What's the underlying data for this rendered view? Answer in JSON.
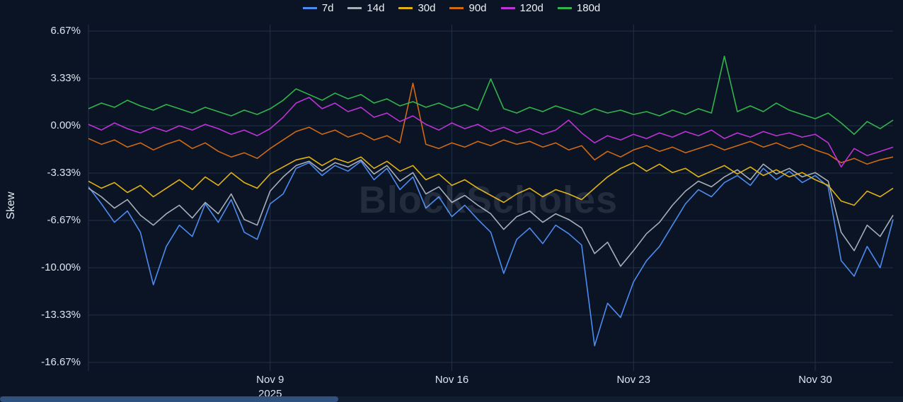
{
  "watermark": "BlockScholes",
  "colors": {
    "background": "#0a1424",
    "grid": "#233147",
    "text": "#dce4ef",
    "scrollbar_track": "#101d33",
    "scrollbar_thumb": "#31517f"
  },
  "y_axis": {
    "title": "Skew",
    "max": 7.12,
    "min": -17.27,
    "ticks": [
      {
        "label": "6.67%",
        "value": 6.67
      },
      {
        "label": "3.33%",
        "value": 3.33
      },
      {
        "label": "0.00%",
        "value": 0
      },
      {
        "label": "-3.33%",
        "value": -3.33
      },
      {
        "label": "-6.67%",
        "value": -6.67
      },
      {
        "label": "-10.00%",
        "value": -10.0
      },
      {
        "label": "-13.33%",
        "value": -13.33
      },
      {
        "label": "-16.67%",
        "value": -16.67
      }
    ]
  },
  "x_axis": {
    "min_day": 0,
    "max_day": 31,
    "unit": "days from chart start (early Nov 2025)",
    "ticks": [
      {
        "label": "Nov 9",
        "sub": "2025",
        "day": 7
      },
      {
        "label": "Nov 16",
        "sub": "",
        "day": 14
      },
      {
        "label": "Nov 23",
        "sub": "",
        "day": 21
      },
      {
        "label": "Nov 30",
        "sub": "",
        "day": 28
      }
    ]
  },
  "chart_data": {
    "type": "line",
    "title": "",
    "ylabel": "Skew",
    "ylim": [
      -17.27,
      7.12
    ],
    "grid": true,
    "legend_position": "top-center",
    "x_unit": "days (0 = chart start ~Nov 2 2025; ticks at Nov 9/16/23/30 2025)",
    "x": [
      0,
      0.5,
      1,
      1.5,
      2,
      2.5,
      3,
      3.5,
      4,
      4.5,
      5,
      5.5,
      6,
      6.5,
      7,
      7.5,
      8,
      8.5,
      9,
      9.5,
      10,
      10.5,
      11,
      11.5,
      12,
      12.5,
      13,
      13.5,
      14,
      14.5,
      15,
      15.5,
      16,
      16.5,
      17,
      17.5,
      18,
      18.5,
      19,
      19.5,
      20,
      20.5,
      21,
      21.5,
      22,
      22.5,
      23,
      23.5,
      24,
      24.5,
      25,
      25.5,
      26,
      26.5,
      27,
      27.5,
      28,
      28.5,
      29,
      29.5,
      30,
      30.5,
      31
    ],
    "series": [
      {
        "name": "7d",
        "color": "#4d8bf0",
        "values": [
          -4.3,
          -5.5,
          -6.8,
          -6.0,
          -7.5,
          -11.2,
          -8.5,
          -7.0,
          -7.8,
          -5.5,
          -6.8,
          -5.2,
          -7.5,
          -8.0,
          -5.5,
          -4.8,
          -3.0,
          -2.6,
          -3.5,
          -2.8,
          -3.2,
          -2.5,
          -3.8,
          -3.0,
          -4.5,
          -3.6,
          -5.8,
          -5.0,
          -6.4,
          -5.6,
          -6.6,
          -7.5,
          -10.4,
          -8.0,
          -7.2,
          -8.3,
          -7.0,
          -7.6,
          -8.4,
          -15.5,
          -12.5,
          -13.5,
          -11.0,
          -9.5,
          -8.5,
          -7.0,
          -5.5,
          -4.5,
          -5.0,
          -4.0,
          -3.5,
          -4.2,
          -3.0,
          -3.8,
          -3.2,
          -4.0,
          -3.5,
          -4.3,
          -9.5,
          -10.6,
          -8.5,
          -10.0,
          -6.6
        ]
      },
      {
        "name": "14d",
        "color": "#a7afb9",
        "values": [
          -4.4,
          -5.0,
          -5.8,
          -5.2,
          -6.3,
          -7.0,
          -6.2,
          -5.6,
          -6.5,
          -5.4,
          -6.2,
          -4.8,
          -6.6,
          -7.0,
          -4.6,
          -3.6,
          -2.8,
          -2.5,
          -3.2,
          -2.6,
          -2.9,
          -2.4,
          -3.4,
          -2.8,
          -3.9,
          -3.3,
          -4.8,
          -4.3,
          -5.4,
          -4.9,
          -5.6,
          -6.2,
          -7.3,
          -6.4,
          -6.0,
          -6.8,
          -6.2,
          -6.6,
          -7.2,
          -9.0,
          -8.2,
          -9.9,
          -8.8,
          -7.6,
          -6.8,
          -5.6,
          -4.6,
          -3.9,
          -4.3,
          -3.6,
          -3.1,
          -3.8,
          -2.7,
          -3.4,
          -3.0,
          -3.6,
          -3.3,
          -3.9,
          -7.5,
          -8.8,
          -7.0,
          -7.8,
          -6.3
        ]
      },
      {
        "name": "30d",
        "color": "#e2b215",
        "values": [
          -3.9,
          -4.4,
          -4.0,
          -4.7,
          -4.2,
          -5.0,
          -4.4,
          -3.8,
          -4.5,
          -3.6,
          -4.2,
          -3.3,
          -4.0,
          -4.4,
          -3.4,
          -2.9,
          -2.4,
          -2.2,
          -2.8,
          -2.3,
          -2.6,
          -2.2,
          -3.0,
          -2.5,
          -3.2,
          -2.8,
          -3.8,
          -3.4,
          -4.2,
          -3.8,
          -4.4,
          -4.9,
          -5.4,
          -4.8,
          -4.4,
          -5.0,
          -4.5,
          -4.8,
          -5.2,
          -4.4,
          -3.6,
          -3.0,
          -2.6,
          -3.2,
          -2.7,
          -3.3,
          -3.0,
          -3.6,
          -3.2,
          -2.8,
          -3.4,
          -2.9,
          -3.5,
          -3.1,
          -3.6,
          -3.3,
          -3.8,
          -4.2,
          -5.3,
          -5.6,
          -4.6,
          -5.0,
          -4.4
        ]
      },
      {
        "name": "90d",
        "color": "#d06a14",
        "values": [
          -0.9,
          -1.3,
          -1.0,
          -1.5,
          -1.2,
          -1.7,
          -1.3,
          -1.0,
          -1.6,
          -1.2,
          -1.8,
          -2.2,
          -1.9,
          -2.3,
          -1.6,
          -1.0,
          -0.4,
          -0.1,
          -0.6,
          -0.3,
          -0.8,
          -0.5,
          -1.0,
          -0.7,
          -1.2,
          3.0,
          -1.3,
          -1.6,
          -1.2,
          -1.5,
          -1.1,
          -1.4,
          -1.0,
          -1.3,
          -1.1,
          -1.5,
          -1.2,
          -1.7,
          -1.4,
          -2.4,
          -1.8,
          -2.2,
          -1.7,
          -1.4,
          -1.8,
          -1.5,
          -1.9,
          -1.6,
          -1.3,
          -1.7,
          -1.4,
          -1.1,
          -1.5,
          -1.2,
          -1.6,
          -1.3,
          -1.7,
          -2.0,
          -2.6,
          -2.3,
          -2.7,
          -2.4,
          -2.2
        ]
      },
      {
        "name": "120d",
        "color": "#bd33d6",
        "values": [
          0.1,
          -0.3,
          0.2,
          -0.2,
          -0.5,
          -0.1,
          -0.4,
          0.0,
          -0.3,
          0.1,
          -0.2,
          -0.6,
          -0.3,
          -0.7,
          -0.2,
          0.6,
          1.6,
          2.0,
          1.2,
          1.6,
          1.0,
          1.3,
          0.6,
          0.9,
          0.3,
          0.7,
          0.1,
          -0.3,
          0.2,
          -0.2,
          0.1,
          -0.4,
          -0.1,
          -0.5,
          -0.2,
          -0.6,
          -0.3,
          0.4,
          -0.5,
          -1.2,
          -0.7,
          -1.0,
          -0.6,
          -0.9,
          -0.5,
          -0.8,
          -0.4,
          -0.7,
          -0.3,
          -0.9,
          -0.5,
          -0.8,
          -0.4,
          -0.7,
          -0.5,
          -0.8,
          -0.6,
          -1.2,
          -2.9,
          -1.6,
          -2.1,
          -1.8,
          -1.5
        ]
      },
      {
        "name": "180d",
        "color": "#31b44b",
        "values": [
          1.2,
          1.6,
          1.3,
          1.8,
          1.4,
          1.1,
          1.5,
          1.2,
          0.9,
          1.3,
          1.0,
          0.7,
          1.1,
          0.8,
          1.2,
          1.8,
          2.6,
          2.2,
          1.8,
          2.3,
          1.9,
          2.2,
          1.6,
          1.9,
          1.4,
          1.7,
          1.3,
          1.6,
          1.2,
          1.5,
          1.1,
          3.3,
          1.2,
          0.9,
          1.3,
          1.0,
          1.4,
          1.1,
          0.8,
          1.2,
          0.9,
          1.1,
          0.8,
          1.0,
          0.7,
          1.1,
          0.8,
          1.2,
          0.9,
          4.9,
          1.0,
          1.4,
          1.0,
          1.6,
          1.1,
          0.8,
          0.5,
          0.9,
          0.2,
          -0.6,
          0.3,
          -0.2,
          0.4
        ]
      }
    ]
  }
}
